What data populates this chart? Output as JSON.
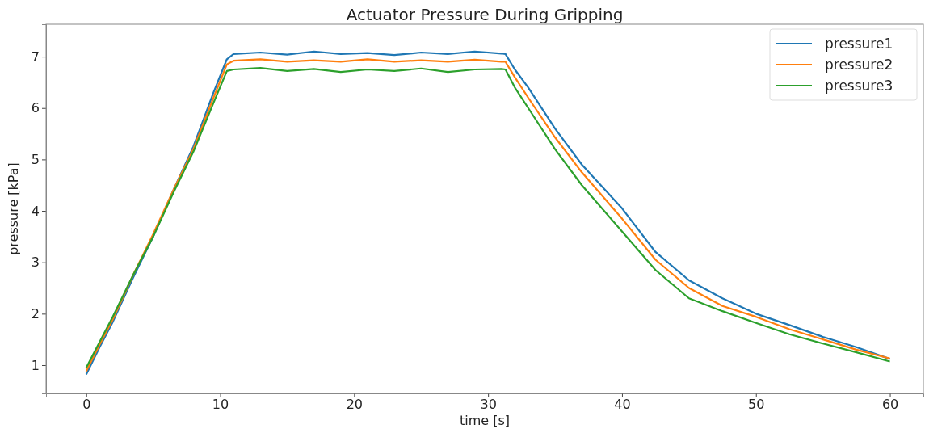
{
  "chart_data": {
    "type": "line",
    "title": "Actuator Pressure During Gripping",
    "xlabel": "time [s]",
    "ylabel": "pressure [kPa]",
    "xlim": [
      -3,
      62.5
    ],
    "ylim": [
      0.45,
      7.63
    ],
    "xticks": [
      0,
      10,
      20,
      30,
      40,
      50,
      60
    ],
    "yticks": [
      1,
      2,
      3,
      4,
      5,
      6,
      7
    ],
    "grid": false,
    "legend": "top right",
    "series": [
      {
        "name": "pressure1",
        "color": "#1f77b4",
        "x": [
          0,
          1,
          2,
          3.5,
          5,
          6.5,
          8,
          9.5,
          10.5,
          11,
          13,
          15,
          17,
          19,
          21,
          23,
          25,
          27,
          29,
          31,
          31.3,
          32,
          33,
          35,
          37,
          40,
          42.5,
          45,
          47.5,
          50,
          52.5,
          55,
          57.5,
          60
        ],
        "values": [
          0.82,
          1.35,
          1.85,
          2.7,
          3.5,
          4.4,
          5.25,
          6.3,
          6.95,
          7.05,
          7.08,
          7.04,
          7.1,
          7.05,
          7.07,
          7.03,
          7.08,
          7.05,
          7.1,
          7.06,
          7.05,
          6.75,
          6.4,
          5.6,
          4.9,
          4.05,
          3.2,
          2.65,
          2.3,
          2.0,
          1.78,
          1.55,
          1.35,
          1.12
        ]
      },
      {
        "name": "pressure2",
        "color": "#ff7f0e",
        "x": [
          0,
          1,
          2,
          3.5,
          5,
          6.5,
          8,
          9.5,
          10.5,
          11,
          13,
          15,
          17,
          19,
          21,
          23,
          25,
          27,
          29,
          31,
          31.3,
          32,
          33,
          35,
          37,
          40,
          42.5,
          45,
          47.5,
          50,
          52.5,
          55,
          57.5,
          60
        ],
        "values": [
          0.88,
          1.4,
          1.9,
          2.75,
          3.55,
          4.4,
          5.2,
          6.2,
          6.85,
          6.92,
          6.95,
          6.9,
          6.93,
          6.9,
          6.95,
          6.9,
          6.93,
          6.9,
          6.94,
          6.9,
          6.9,
          6.6,
          6.2,
          5.43,
          4.75,
          3.85,
          3.05,
          2.5,
          2.15,
          1.94,
          1.7,
          1.5,
          1.3,
          1.13
        ]
      },
      {
        "name": "pressure3",
        "color": "#2ca02c",
        "x": [
          0,
          1,
          2,
          3.5,
          5,
          6.5,
          8,
          9.5,
          10.5,
          11,
          13,
          15,
          17,
          19,
          21,
          23,
          25,
          27,
          29,
          31,
          31.3,
          32,
          33,
          35,
          37,
          40,
          42.5,
          45,
          47.5,
          50,
          52.5,
          55,
          57.5,
          60
        ],
        "values": [
          0.95,
          1.45,
          1.95,
          2.75,
          3.5,
          4.35,
          5.15,
          6.1,
          6.72,
          6.75,
          6.78,
          6.72,
          6.76,
          6.7,
          6.75,
          6.72,
          6.77,
          6.7,
          6.75,
          6.76,
          6.75,
          6.4,
          6.0,
          5.2,
          4.5,
          3.6,
          2.85,
          2.3,
          2.05,
          1.82,
          1.6,
          1.42,
          1.25,
          1.07
        ]
      }
    ]
  }
}
